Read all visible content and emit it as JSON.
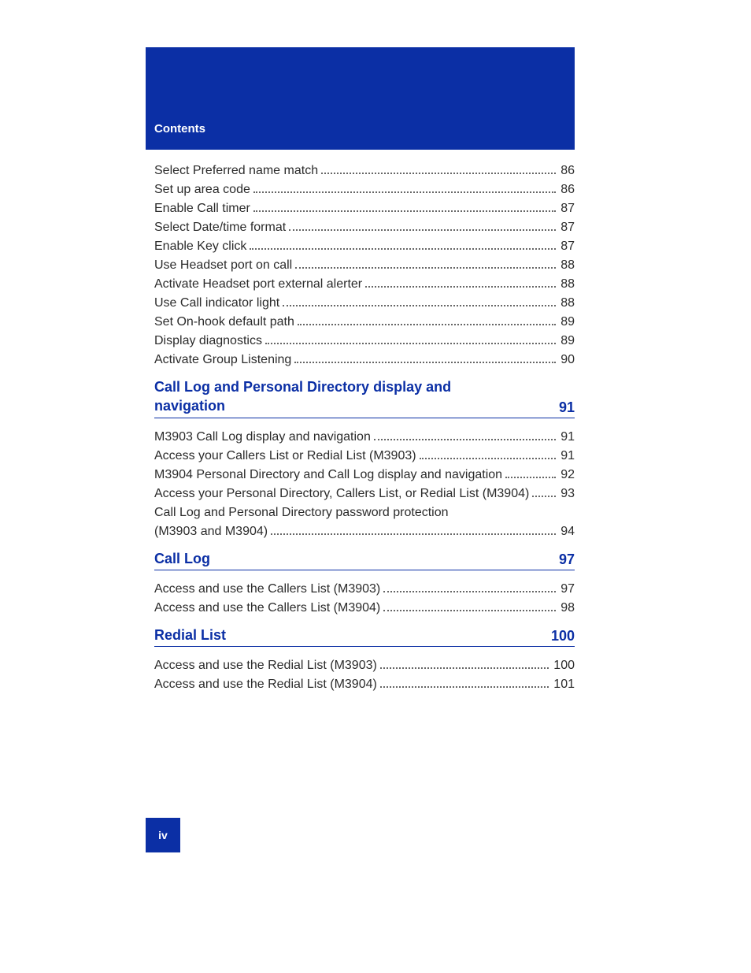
{
  "colors": {
    "accent": "#0b2fa5",
    "text": "#2b2b2b",
    "background": "#ffffff",
    "dots": "#666666"
  },
  "typography": {
    "body_fontsize": 16,
    "header_fontsize": 15,
    "section_fontsize": 18,
    "pagebox_fontsize": 14,
    "section_weight": 700
  },
  "header": {
    "label": "Contents"
  },
  "page_number": "iv",
  "groups": [
    {
      "title": null,
      "page": null,
      "items": [
        {
          "label": "Select Preferred name match",
          "page": "86"
        },
        {
          "label": "Set up area code",
          "page": "86"
        },
        {
          "label": "Enable Call timer",
          "page": "87"
        },
        {
          "label": "Select Date/time format",
          "page": "87"
        },
        {
          "label": "Enable Key click",
          "page": "87"
        },
        {
          "label": "Use Headset port on call",
          "page": "88"
        },
        {
          "label": "Activate Headset port external alerter",
          "page": "88"
        },
        {
          "label": "Use Call indicator light",
          "page": "88"
        },
        {
          "label": "Set On-hook default path",
          "page": "89"
        },
        {
          "label": "Display diagnostics",
          "page": "89"
        },
        {
          "label": "Activate Group Listening",
          "page": "90"
        }
      ]
    },
    {
      "title": "Call Log and Personal Directory display and navigation",
      "page": "91",
      "items": [
        {
          "label": "M3903 Call Log display and navigation",
          "page": "91"
        },
        {
          "label": "Access your Callers List or Redial List (M3903)",
          "page": "91"
        },
        {
          "label": "M3904 Personal Directory and Call Log display and navigation",
          "page": "92"
        },
        {
          "label": "Access your Personal Directory, Callers List, or Redial List (M3904)",
          "page": "93"
        },
        {
          "label": "Call Log and Personal Directory password protection (M3903 and M3904)",
          "page": "94",
          "multi": true
        }
      ]
    },
    {
      "title": "Call Log",
      "page": "97",
      "items": [
        {
          "label": "Access and use the Callers List (M3903)",
          "page": "97"
        },
        {
          "label": "Access and use the Callers List (M3904)",
          "page": "98"
        }
      ]
    },
    {
      "title": "Redial List",
      "page": "100",
      "items": [
        {
          "label": "Access and use the Redial List (M3903)",
          "page": "100"
        },
        {
          "label": "Access and use the Redial List (M3904)",
          "page": "101"
        }
      ]
    }
  ]
}
